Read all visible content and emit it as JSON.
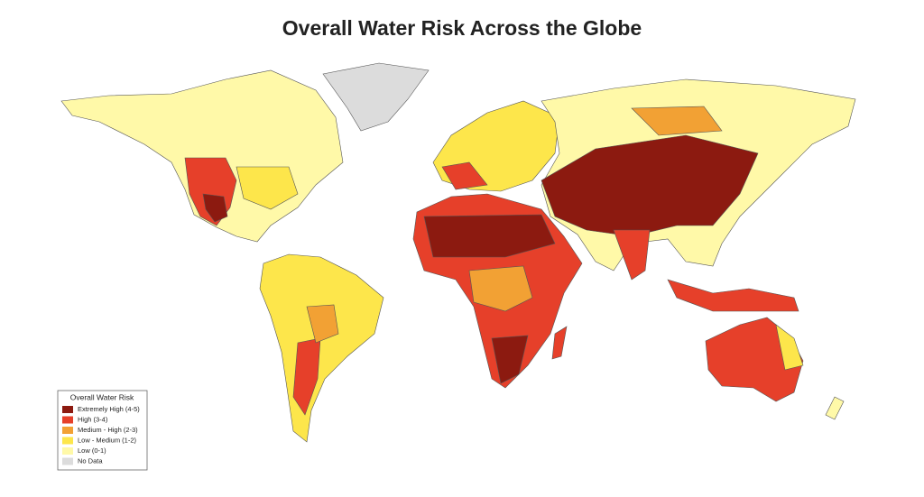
{
  "title": "Overall Water Risk Across the Globe",
  "legend": {
    "title": "Overall Water Risk",
    "items": [
      {
        "label": "Extremely High (4-5)",
        "color": "#8c1a10"
      },
      {
        "label": "High (3-4)",
        "color": "#e6402a"
      },
      {
        "label": "Medium - High (2-3)",
        "color": "#f2a134"
      },
      {
        "label": "Low - Medium (1-2)",
        "color": "#fde64b"
      },
      {
        "label": "Low (0-1)",
        "color": "#fff9a8"
      },
      {
        "label": "No Data",
        "color": "#dcdcdc"
      }
    ]
  }
}
